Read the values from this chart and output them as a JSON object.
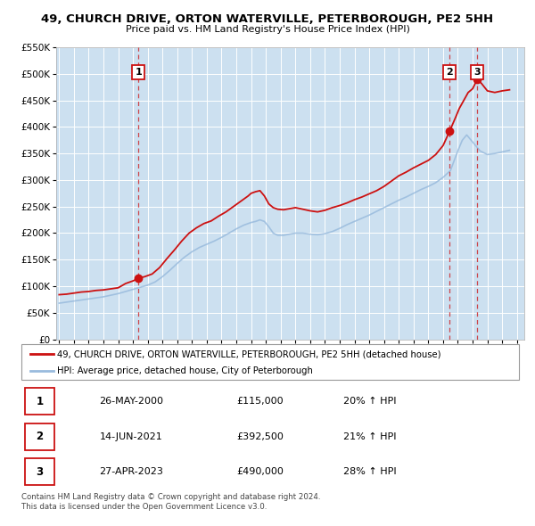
{
  "title": "49, CHURCH DRIVE, ORTON WATERVILLE, PETERBOROUGH, PE2 5HH",
  "subtitle": "Price paid vs. HM Land Registry's House Price Index (HPI)",
  "red_label": "49, CHURCH DRIVE, ORTON WATERVILLE, PETERBOROUGH, PE2 5HH (detached house)",
  "blue_label": "HPI: Average price, detached house, City of Peterborough",
  "footnote1": "Contains HM Land Registry data © Crown copyright and database right 2024.",
  "footnote2": "This data is licensed under the Open Government Licence v3.0.",
  "ylim": [
    0,
    550000
  ],
  "yticks": [
    0,
    50000,
    100000,
    150000,
    200000,
    250000,
    300000,
    350000,
    400000,
    450000,
    500000,
    550000
  ],
  "ytick_labels": [
    "£0",
    "£50K",
    "£100K",
    "£150K",
    "£200K",
    "£250K",
    "£300K",
    "£350K",
    "£400K",
    "£450K",
    "£500K",
    "£550K"
  ],
  "xlim_start": 1994.8,
  "xlim_end": 2026.5,
  "fig_bg": "#ffffff",
  "plot_bg": "#cce0f0",
  "grid_color": "#ffffff",
  "sale_points": [
    {
      "label": "1",
      "date_num": 2000.38,
      "value": 115000
    },
    {
      "label": "2",
      "date_num": 2021.45,
      "value": 392500
    },
    {
      "label": "3",
      "date_num": 2023.32,
      "value": 490000
    }
  ],
  "table_rows": [
    {
      "num": "1",
      "date": "26-MAY-2000",
      "price": "£115,000",
      "hpi": "20% ↑ HPI"
    },
    {
      "num": "2",
      "date": "14-JUN-2021",
      "price": "£392,500",
      "hpi": "21% ↑ HPI"
    },
    {
      "num": "3",
      "date": "27-APR-2023",
      "price": "£490,000",
      "hpi": "28% ↑ HPI"
    }
  ],
  "red_line": {
    "x": [
      1995.0,
      1995.5,
      1996.0,
      1996.5,
      1997.0,
      1997.5,
      1998.0,
      1998.5,
      1999.0,
      1999.5,
      2000.0,
      2000.38,
      2000.8,
      2001.3,
      2001.8,
      2002.3,
      2002.8,
      2003.3,
      2003.8,
      2004.3,
      2004.8,
      2005.3,
      2005.8,
      2006.3,
      2006.8,
      2007.3,
      2007.8,
      2008.0,
      2008.3,
      2008.6,
      2008.9,
      2009.2,
      2009.5,
      2009.8,
      2010.2,
      2010.6,
      2011.0,
      2011.5,
      2012.0,
      2012.5,
      2013.0,
      2013.5,
      2014.0,
      2014.5,
      2015.0,
      2015.5,
      2016.0,
      2016.5,
      2017.0,
      2017.5,
      2018.0,
      2018.5,
      2019.0,
      2019.5,
      2020.0,
      2020.5,
      2021.0,
      2021.45,
      2021.8,
      2022.1,
      2022.4,
      2022.7,
      2023.0,
      2023.32,
      2023.6,
      2024.0,
      2024.5,
      2025.0,
      2025.5
    ],
    "y": [
      84000,
      85000,
      87000,
      89000,
      90000,
      92000,
      93000,
      95000,
      97000,
      105000,
      110000,
      115000,
      118000,
      123000,
      135000,
      152000,
      168000,
      185000,
      200000,
      210000,
      218000,
      223000,
      232000,
      240000,
      250000,
      260000,
      270000,
      275000,
      278000,
      280000,
      270000,
      255000,
      248000,
      245000,
      244000,
      246000,
      248000,
      245000,
      242000,
      240000,
      243000,
      248000,
      252000,
      257000,
      263000,
      268000,
      274000,
      280000,
      288000,
      298000,
      308000,
      315000,
      323000,
      330000,
      337000,
      348000,
      365000,
      392500,
      415000,
      435000,
      450000,
      465000,
      472000,
      490000,
      482000,
      468000,
      465000,
      468000,
      470000
    ]
  },
  "blue_line": {
    "x": [
      1995.0,
      1995.5,
      1996.0,
      1996.5,
      1997.0,
      1997.5,
      1998.0,
      1998.5,
      1999.0,
      1999.5,
      2000.0,
      2000.5,
      2001.0,
      2001.5,
      2002.0,
      2002.5,
      2003.0,
      2003.5,
      2004.0,
      2004.5,
      2005.0,
      2005.5,
      2006.0,
      2006.5,
      2007.0,
      2007.5,
      2008.0,
      2008.3,
      2008.6,
      2008.9,
      2009.2,
      2009.5,
      2009.8,
      2010.2,
      2010.6,
      2011.0,
      2011.5,
      2012.0,
      2012.5,
      2013.0,
      2013.5,
      2014.0,
      2014.5,
      2015.0,
      2015.5,
      2016.0,
      2016.5,
      2017.0,
      2017.5,
      2018.0,
      2018.5,
      2019.0,
      2019.5,
      2020.0,
      2020.5,
      2021.0,
      2021.5,
      2022.0,
      2022.3,
      2022.6,
      2022.9,
      2023.2,
      2023.5,
      2024.0,
      2024.5,
      2025.0,
      2025.5
    ],
    "y": [
      68000,
      70000,
      72000,
      74000,
      76000,
      78000,
      80000,
      83000,
      86000,
      90000,
      94000,
      98000,
      102000,
      108000,
      118000,
      130000,
      143000,
      155000,
      165000,
      173000,
      179000,
      185000,
      192000,
      200000,
      208000,
      215000,
      220000,
      222000,
      225000,
      222000,
      212000,
      200000,
      196000,
      196000,
      198000,
      200000,
      200000,
      198000,
      197000,
      199000,
      203000,
      209000,
      216000,
      222000,
      228000,
      234000,
      241000,
      248000,
      255000,
      262000,
      268000,
      275000,
      282000,
      288000,
      295000,
      305000,
      318000,
      355000,
      375000,
      385000,
      375000,
      365000,
      355000,
      348000,
      350000,
      353000,
      356000
    ]
  }
}
